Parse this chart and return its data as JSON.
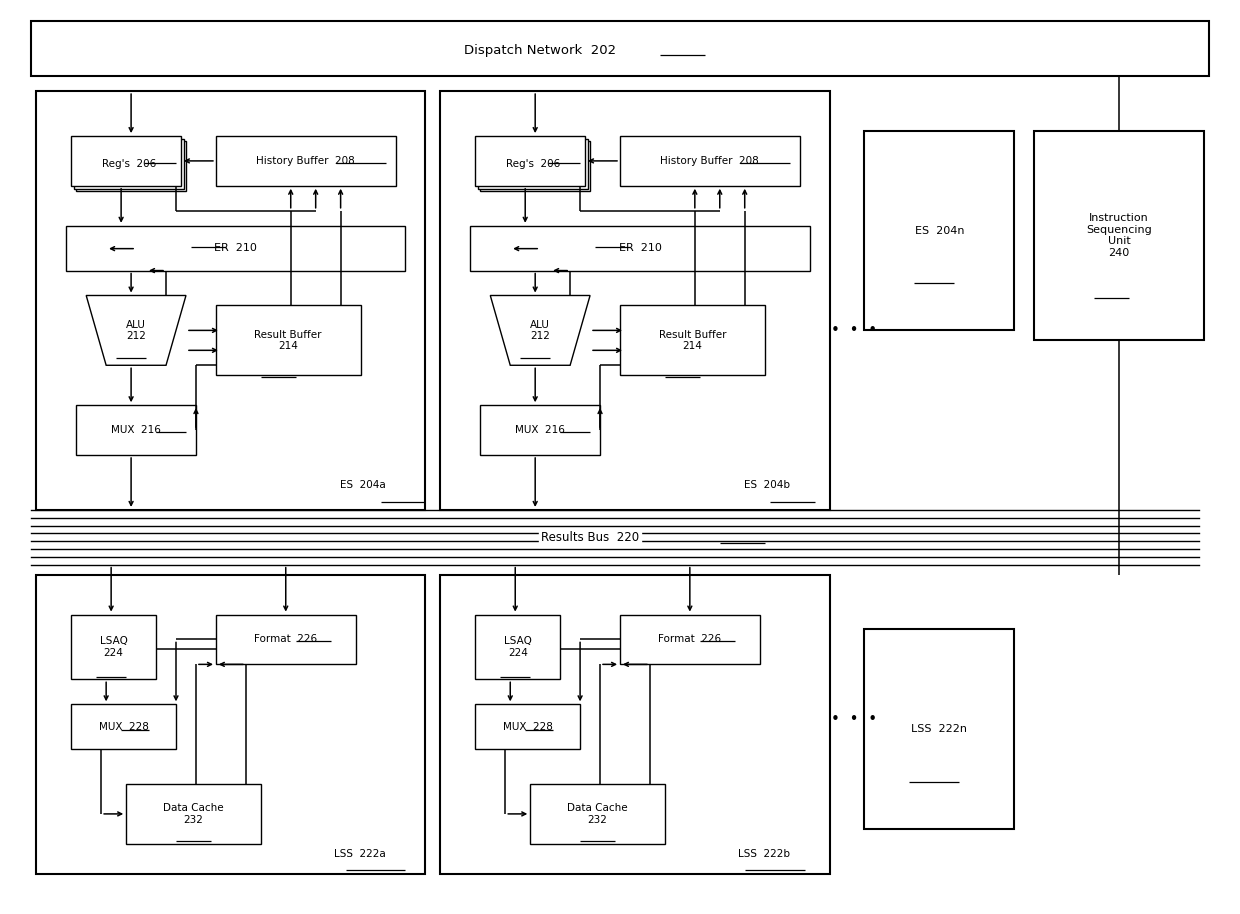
{
  "bg": "#ffffff",
  "lc": "#000000",
  "fig_w": 12.4,
  "fig_h": 9.14,
  "xlim": 124,
  "ylim": 91.4,
  "dispatch_label": "Dispatch Network  202",
  "results_bus_label": "Results Bus  220",
  "es_a_label": "ES  204a",
  "es_b_label": "ES  204b",
  "es_n_label": "ES  204n",
  "lss_a_label": "LSS  222a",
  "lss_b_label": "LSS  222b",
  "lss_n_label": "LSS  222n",
  "isu_label": "Instruction\nSequencing\nUnit\n240"
}
